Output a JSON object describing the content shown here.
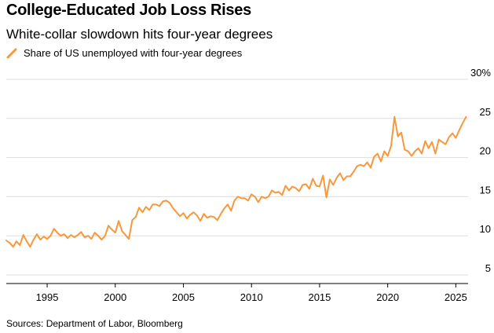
{
  "header": {
    "title": "College-Educated Job Loss Rises",
    "subtitle": "White-collar slowdown hits four-year degrees"
  },
  "footer": {
    "source": "Sources: Department of Labor, Bloomberg"
  },
  "colors": {
    "series": "#F7983C",
    "grid": "#DDDDDD",
    "axis": "#000000"
  },
  "chart_data": {
    "type": "line",
    "title": "College-Educated Job Loss Rises",
    "subtitle": "White-collar slowdown hits four-year degrees",
    "xlabel": "",
    "ylabel": "",
    "xlim": [
      1992,
      2025.9
    ],
    "ylim": [
      4,
      30
    ],
    "x_ticks": [
      1995,
      2000,
      2005,
      2010,
      2015,
      2020,
      2025
    ],
    "y_ticks": [
      5,
      10,
      15,
      20,
      25,
      30
    ],
    "y_tick_labels": [
      "5",
      "10",
      "15",
      "20",
      "25",
      "30%"
    ],
    "grid": "horizontal",
    "legend": "top-left",
    "series": [
      {
        "name": "Share of US unemployed with four-year degrees",
        "color": "#F7983C",
        "x": [
          1992.0,
          1992.25,
          1992.5,
          1992.75,
          1993.0,
          1993.25,
          1993.5,
          1993.75,
          1994.0,
          1994.25,
          1994.5,
          1994.75,
          1995.0,
          1995.25,
          1995.5,
          1995.75,
          1996.0,
          1996.25,
          1996.5,
          1996.75,
          1997.0,
          1997.25,
          1997.5,
          1997.75,
          1998.0,
          1998.25,
          1998.5,
          1998.75,
          1999.0,
          1999.25,
          1999.5,
          1999.75,
          2000.0,
          2000.25,
          2000.5,
          2000.75,
          2001.0,
          2001.25,
          2001.5,
          2001.75,
          2002.0,
          2002.25,
          2002.5,
          2002.75,
          2003.0,
          2003.25,
          2003.5,
          2003.75,
          2004.0,
          2004.25,
          2004.5,
          2004.75,
          2005.0,
          2005.25,
          2005.5,
          2005.75,
          2006.0,
          2006.25,
          2006.5,
          2006.75,
          2007.0,
          2007.25,
          2007.5,
          2007.75,
          2008.0,
          2008.25,
          2008.5,
          2008.75,
          2009.0,
          2009.25,
          2009.5,
          2009.75,
          2010.0,
          2010.25,
          2010.5,
          2010.75,
          2011.0,
          2011.25,
          2011.5,
          2011.75,
          2012.0,
          2012.25,
          2012.5,
          2012.75,
          2013.0,
          2013.25,
          2013.5,
          2013.75,
          2014.0,
          2014.25,
          2014.5,
          2014.75,
          2015.0,
          2015.25,
          2015.5,
          2015.75,
          2016.0,
          2016.25,
          2016.5,
          2016.75,
          2017.0,
          2017.25,
          2017.5,
          2017.75,
          2018.0,
          2018.25,
          2018.5,
          2018.75,
          2019.0,
          2019.25,
          2019.5,
          2019.75,
          2020.0,
          2020.25,
          2020.5,
          2020.75,
          2021.0,
          2021.25,
          2021.5,
          2021.75,
          2022.0,
          2022.25,
          2022.5,
          2022.75,
          2023.0,
          2023.25,
          2023.5,
          2023.75,
          2024.0,
          2024.25,
          2024.5,
          2024.75,
          2025.0,
          2025.25,
          2025.5,
          2025.75
        ],
        "values": [
          9.4,
          9.1,
          8.6,
          9.3,
          8.8,
          10.1,
          9.3,
          8.6,
          9.5,
          10.2,
          9.5,
          9.9,
          9.6,
          10.0,
          10.9,
          10.4,
          10.0,
          10.2,
          9.7,
          10.1,
          9.8,
          10.1,
          10.5,
          9.8,
          10.0,
          9.6,
          10.4,
          10.0,
          9.5,
          10.0,
          11.3,
          10.8,
          10.4,
          11.9,
          10.6,
          10.1,
          9.6,
          12.0,
          12.4,
          13.6,
          13.0,
          13.7,
          13.3,
          14.0,
          14.0,
          13.8,
          14.4,
          14.5,
          14.2,
          13.5,
          13.0,
          12.5,
          12.9,
          12.2,
          12.7,
          13.0,
          12.6,
          11.9,
          12.8,
          12.3,
          12.5,
          12.4,
          12.0,
          12.8,
          13.5,
          14.0,
          13.2,
          14.5,
          15.0,
          14.8,
          14.8,
          14.5,
          15.3,
          15.0,
          14.3,
          15.0,
          14.8,
          15.0,
          15.8,
          15.5,
          15.6,
          15.2,
          16.4,
          15.8,
          16.3,
          16.1,
          15.7,
          16.5,
          16.6,
          16.0,
          17.3,
          16.4,
          16.3,
          17.7,
          14.9,
          17.2,
          16.5,
          17.4,
          18.0,
          17.1,
          17.6,
          17.6,
          18.2,
          18.9,
          19.1,
          18.9,
          19.4,
          18.7,
          20.1,
          20.5,
          19.5,
          20.8,
          20.2,
          21.5,
          25.2,
          22.7,
          23.2,
          21.0,
          20.8,
          20.2,
          20.8,
          21.2,
          20.5,
          22.1,
          21.2,
          22.0,
          20.5,
          22.3,
          22.0,
          21.7,
          22.6,
          23.1,
          22.5,
          23.5,
          24.4,
          25.2
        ]
      }
    ]
  }
}
